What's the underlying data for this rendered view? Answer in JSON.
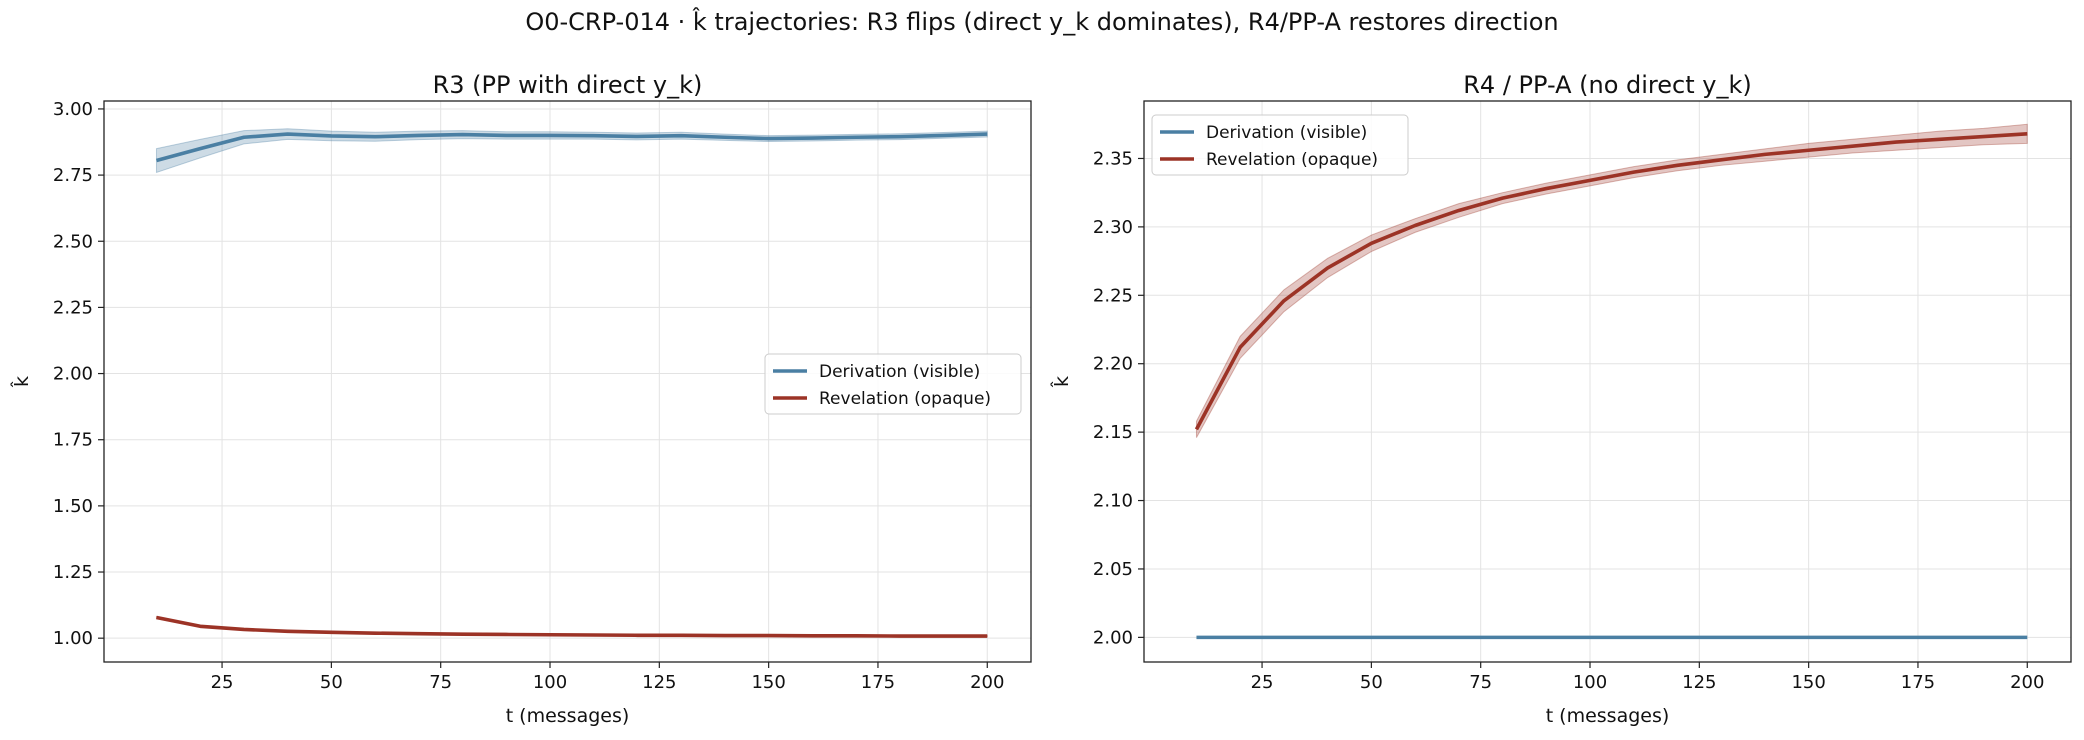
{
  "figure": {
    "suptitle": "O0-CRP-014 · k̂ trajectories: R3 flips (direct y_k dominates), R4/PP-A restores direction"
  },
  "colors": {
    "derivation": "#4a7fa3",
    "revelation": "#9c3326",
    "grid": "#e3e3e3",
    "axis": "#222222"
  },
  "chart_data": [
    {
      "type": "line",
      "title": "R3 (PP with direct y_k)",
      "xlabel": "t (messages)",
      "ylabel": "k̂",
      "xlim": [
        -2,
        210
      ],
      "ylim": [
        0.91,
        3.03
      ],
      "xticks": [
        25,
        50,
        75,
        100,
        125,
        150,
        175,
        200
      ],
      "xtick_labels": [
        "25",
        "50",
        "75",
        "100",
        "125",
        "150",
        "175",
        "200"
      ],
      "yticks": [
        1.0,
        1.25,
        1.5,
        1.75,
        2.0,
        2.25,
        2.5,
        2.75,
        3.0
      ],
      "ytick_labels": [
        "1.00",
        "1.25",
        "1.50",
        "1.75",
        "2.00",
        "2.25",
        "2.50",
        "2.75",
        "3.00"
      ],
      "grid": true,
      "legend_position": "center-right",
      "x": [
        10,
        20,
        30,
        40,
        50,
        60,
        70,
        80,
        90,
        100,
        110,
        120,
        130,
        140,
        150,
        160,
        170,
        180,
        190,
        200
      ],
      "series": [
        {
          "name": "Derivation (visible)",
          "values": [
            2.805,
            2.85,
            2.893,
            2.905,
            2.898,
            2.895,
            2.9,
            2.903,
            2.9,
            2.9,
            2.899,
            2.896,
            2.899,
            2.893,
            2.888,
            2.89,
            2.893,
            2.895,
            2.9,
            2.905
          ],
          "lower": [
            2.76,
            2.815,
            2.868,
            2.885,
            2.88,
            2.878,
            2.884,
            2.888,
            2.886,
            2.886,
            2.886,
            2.883,
            2.886,
            2.881,
            2.877,
            2.879,
            2.882,
            2.884,
            2.889,
            2.894
          ],
          "upper": [
            2.85,
            2.885,
            2.918,
            2.925,
            2.916,
            2.912,
            2.916,
            2.918,
            2.914,
            2.914,
            2.912,
            2.909,
            2.912,
            2.905,
            2.899,
            2.901,
            2.904,
            2.906,
            2.911,
            2.916
          ]
        },
        {
          "name": "Revelation (opaque)",
          "values": [
            1.078,
            1.045,
            1.033,
            1.026,
            1.022,
            1.019,
            1.017,
            1.015,
            1.014,
            1.013,
            1.012,
            1.011,
            1.011,
            1.01,
            1.01,
            1.009,
            1.009,
            1.008,
            1.008,
            1.008
          ],
          "lower": [
            1.074,
            1.042,
            1.031,
            1.024,
            1.02,
            1.017,
            1.015,
            1.014,
            1.013,
            1.012,
            1.011,
            1.01,
            1.01,
            1.009,
            1.009,
            1.008,
            1.008,
            1.007,
            1.007,
            1.007
          ],
          "upper": [
            1.082,
            1.048,
            1.035,
            1.028,
            1.024,
            1.021,
            1.019,
            1.016,
            1.015,
            1.014,
            1.013,
            1.012,
            1.012,
            1.011,
            1.011,
            1.01,
            1.01,
            1.009,
            1.009,
            1.009
          ]
        }
      ]
    },
    {
      "type": "line",
      "title": "R4 / PP-A (no direct y_k)",
      "xlabel": "t (messages)",
      "ylabel": "k̂",
      "xlim": [
        -2,
        210
      ],
      "ylim": [
        1.982,
        2.392
      ],
      "xticks": [
        25,
        50,
        75,
        100,
        125,
        150,
        175,
        200
      ],
      "xtick_labels": [
        "25",
        "50",
        "75",
        "100",
        "125",
        "150",
        "175",
        "200"
      ],
      "yticks": [
        2.0,
        2.05,
        2.1,
        2.15,
        2.2,
        2.25,
        2.3,
        2.35
      ],
      "ytick_labels": [
        "2.00",
        "2.05",
        "2.10",
        "2.15",
        "2.20",
        "2.25",
        "2.30",
        "2.35"
      ],
      "grid": true,
      "legend_position": "top-left",
      "x": [
        10,
        20,
        30,
        40,
        50,
        60,
        70,
        80,
        90,
        100,
        110,
        120,
        130,
        140,
        150,
        160,
        170,
        180,
        190,
        200
      ],
      "series": [
        {
          "name": "Derivation (visible)",
          "values": [
            2.0,
            2.0,
            2.0,
            2.0,
            2.0,
            2.0,
            2.0,
            2.0,
            2.0,
            2.0,
            2.0,
            2.0,
            2.0,
            2.0,
            2.0,
            2.0,
            2.0,
            2.0,
            2.0,
            2.0
          ],
          "lower": [
            2.0,
            2.0,
            2.0,
            2.0,
            2.0,
            2.0,
            2.0,
            2.0,
            2.0,
            2.0,
            2.0,
            2.0,
            2.0,
            2.0,
            2.0,
            2.0,
            2.0,
            2.0,
            2.0,
            2.0
          ],
          "upper": [
            2.0,
            2.0,
            2.0,
            2.0,
            2.0,
            2.0,
            2.0,
            2.0,
            2.0,
            2.0,
            2.0,
            2.0,
            2.0,
            2.0,
            2.0,
            2.0,
            2.0,
            2.0,
            2.0,
            2.0
          ]
        },
        {
          "name": "Revelation (opaque)",
          "values": [
            2.152,
            2.212,
            2.246,
            2.27,
            2.288,
            2.301,
            2.312,
            2.321,
            2.328,
            2.334,
            2.34,
            2.345,
            2.349,
            2.353,
            2.356,
            2.359,
            2.362,
            2.364,
            2.366,
            2.368
          ],
          "lower": [
            2.146,
            2.204,
            2.238,
            2.263,
            2.282,
            2.296,
            2.307,
            2.317,
            2.324,
            2.33,
            2.336,
            2.341,
            2.345,
            2.348,
            2.351,
            2.354,
            2.356,
            2.358,
            2.36,
            2.361
          ],
          "upper": [
            2.158,
            2.22,
            2.254,
            2.277,
            2.294,
            2.306,
            2.317,
            2.325,
            2.332,
            2.338,
            2.344,
            2.349,
            2.353,
            2.357,
            2.361,
            2.364,
            2.367,
            2.37,
            2.372,
            2.375
          ]
        }
      ]
    }
  ]
}
